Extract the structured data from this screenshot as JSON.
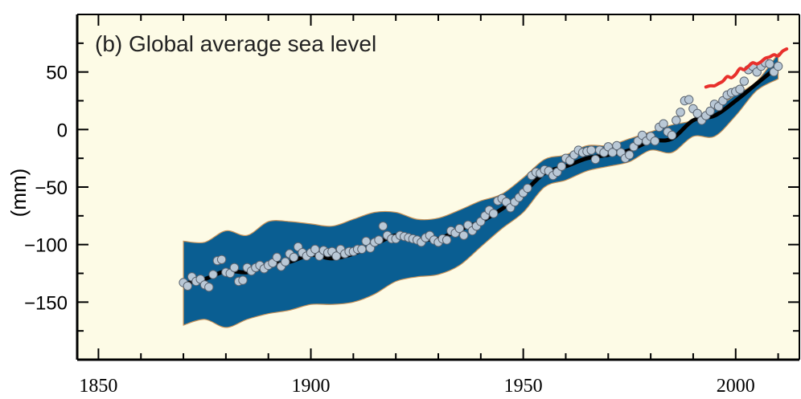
{
  "chart_data": {
    "type": "line",
    "title": "(b) Global average sea level",
    "xlabel": "",
    "ylabel": "(mm)",
    "xlim": [
      1845,
      2015
    ],
    "ylim": [
      -200,
      100
    ],
    "x_ticks": [
      1850,
      1900,
      1950,
      2000
    ],
    "y_ticks": [
      50,
      0,
      -50,
      -100,
      -150
    ],
    "x_tick_labels": [
      "1850",
      "1900",
      "1950",
      "2000"
    ],
    "y_tick_labels": [
      "50",
      "0",
      "−50",
      "−100",
      "−150"
    ],
    "grid": false,
    "legend": "none",
    "colors": {
      "background": "#fdfbe6",
      "uncertainty_band": "#0a5e92",
      "band_edge": "#c8935a",
      "smoothed_line": "#000000",
      "points_fill": "#b9c8d6",
      "points_stroke": "#5a6470",
      "satellite_line": "#e8302c"
    },
    "series": [
      {
        "kind": "band",
        "x": [
          1870,
          1875,
          1880,
          1885,
          1890,
          1895,
          1900,
          1905,
          1910,
          1915,
          1920,
          1925,
          1930,
          1935,
          1940,
          1945,
          1950,
          1955,
          1960,
          1965,
          1970,
          1975,
          1980,
          1985,
          1990,
          1995,
          2000,
          2005,
          2010
        ],
        "upper": [
          -97,
          -98,
          -88,
          -92,
          -80,
          -80,
          -82,
          -84,
          -78,
          -72,
          -72,
          -78,
          -77,
          -70,
          -62,
          -56,
          -42,
          -26,
          -22,
          -14,
          -14,
          -8,
          -2,
          4,
          8,
          18,
          30,
          42,
          66
        ],
        "lower": [
          -170,
          -165,
          -172,
          -165,
          -160,
          -157,
          -152,
          -152,
          -150,
          -143,
          -132,
          -128,
          -126,
          -118,
          -102,
          -86,
          -72,
          -50,
          -44,
          -36,
          -32,
          -28,
          -18,
          -20,
          -6,
          -6,
          12,
          34,
          44
        ]
      },
      {
        "kind": "line",
        "x": [
          1870,
          1875,
          1880,
          1885,
          1890,
          1895,
          1900,
          1905,
          1910,
          1915,
          1920,
          1925,
          1930,
          1935,
          1940,
          1945,
          1950,
          1955,
          1960,
          1965,
          1970,
          1975,
          1980,
          1985,
          1990,
          1995,
          2000,
          2005,
          2010
        ],
        "y": [
          -134,
          -130,
          -123,
          -124,
          -118,
          -115,
          -109,
          -112,
          -108,
          -100,
          -92,
          -95,
          -95,
          -87,
          -80,
          -69,
          -55,
          -38,
          -32,
          -25,
          -22,
          -18,
          -10,
          -8,
          8,
          12,
          25,
          40,
          55
        ]
      },
      {
        "kind": "scatter",
        "x": [
          1870,
          1871,
          1872,
          1873,
          1874,
          1875,
          1876,
          1877,
          1878,
          1879,
          1880,
          1881,
          1882,
          1883,
          1884,
          1885,
          1886,
          1887,
          1888,
          1889,
          1890,
          1891,
          1892,
          1893,
          1894,
          1895,
          1896,
          1897,
          1898,
          1899,
          1900,
          1901,
          1902,
          1903,
          1904,
          1905,
          1906,
          1907,
          1908,
          1909,
          1910,
          1911,
          1912,
          1913,
          1914,
          1915,
          1916,
          1917,
          1918,
          1919,
          1920,
          1921,
          1922,
          1923,
          1924,
          1925,
          1926,
          1927,
          1928,
          1929,
          1930,
          1931,
          1932,
          1933,
          1934,
          1935,
          1936,
          1937,
          1938,
          1939,
          1940,
          1941,
          1942,
          1943,
          1944,
          1945,
          1946,
          1947,
          1948,
          1949,
          1950,
          1951,
          1952,
          1953,
          1954,
          1955,
          1956,
          1957,
          1958,
          1959,
          1960,
          1961,
          1962,
          1963,
          1964,
          1965,
          1966,
          1967,
          1968,
          1969,
          1970,
          1971,
          1972,
          1973,
          1974,
          1975,
          1976,
          1977,
          1978,
          1979,
          1980,
          1981,
          1982,
          1983,
          1984,
          1985,
          1986,
          1987,
          1988,
          1989,
          1990,
          1991,
          1992,
          1993,
          1994,
          1995,
          1996,
          1997,
          1998,
          1999,
          2000,
          2001,
          2002,
          2003,
          2004,
          2005,
          2006,
          2007,
          2008,
          2009,
          2010
        ],
        "y": [
          -133,
          -136,
          -128,
          -132,
          -130,
          -135,
          -137,
          -126,
          -114,
          -113,
          -124,
          -125,
          -120,
          -132,
          -131,
          -120,
          -123,
          -120,
          -118,
          -121,
          -118,
          -116,
          -111,
          -119,
          -115,
          -108,
          -111,
          -102,
          -107,
          -110,
          -107,
          -104,
          -110,
          -105,
          -107,
          -106,
          -110,
          -104,
          -108,
          -106,
          -106,
          -104,
          -104,
          -97,
          -103,
          -98,
          -96,
          -84,
          -92,
          -95,
          -95,
          -92,
          -93,
          -94,
          -95,
          -96,
          -98,
          -94,
          -92,
          -96,
          -98,
          -95,
          -96,
          -88,
          -90,
          -86,
          -92,
          -83,
          -88,
          -84,
          -80,
          -75,
          -70,
          -73,
          -62,
          -60,
          -63,
          -68,
          -63,
          -59,
          -55,
          -51,
          -40,
          -37,
          -38,
          -35,
          -36,
          -40,
          -37,
          -32,
          -25,
          -27,
          -22,
          -18,
          -20,
          -19,
          -18,
          -26,
          -18,
          -20,
          -15,
          -20,
          -14,
          -20,
          -25,
          -22,
          -15,
          -10,
          -5,
          -10,
          -6,
          -10,
          2,
          5,
          -2,
          -5,
          8,
          15,
          25,
          26,
          18,
          14,
          8,
          12,
          16,
          22,
          20,
          25,
          30,
          32,
          33,
          35,
          42,
          52,
          55,
          50,
          55,
          58,
          57,
          50,
          55
        ]
      },
      {
        "kind": "line",
        "x": [
          1993,
          1994,
          1995,
          1996,
          1997,
          1998,
          1999,
          2000,
          2001,
          2002,
          2003,
          2004,
          2005,
          2006,
          2007,
          2008,
          2009,
          2010,
          2011,
          2012
        ],
        "y": [
          37,
          38,
          38,
          40,
          42,
          46,
          45,
          48,
          53,
          52,
          55,
          58,
          57,
          59,
          62,
          63,
          65,
          64,
          68,
          70
        ]
      }
    ]
  }
}
